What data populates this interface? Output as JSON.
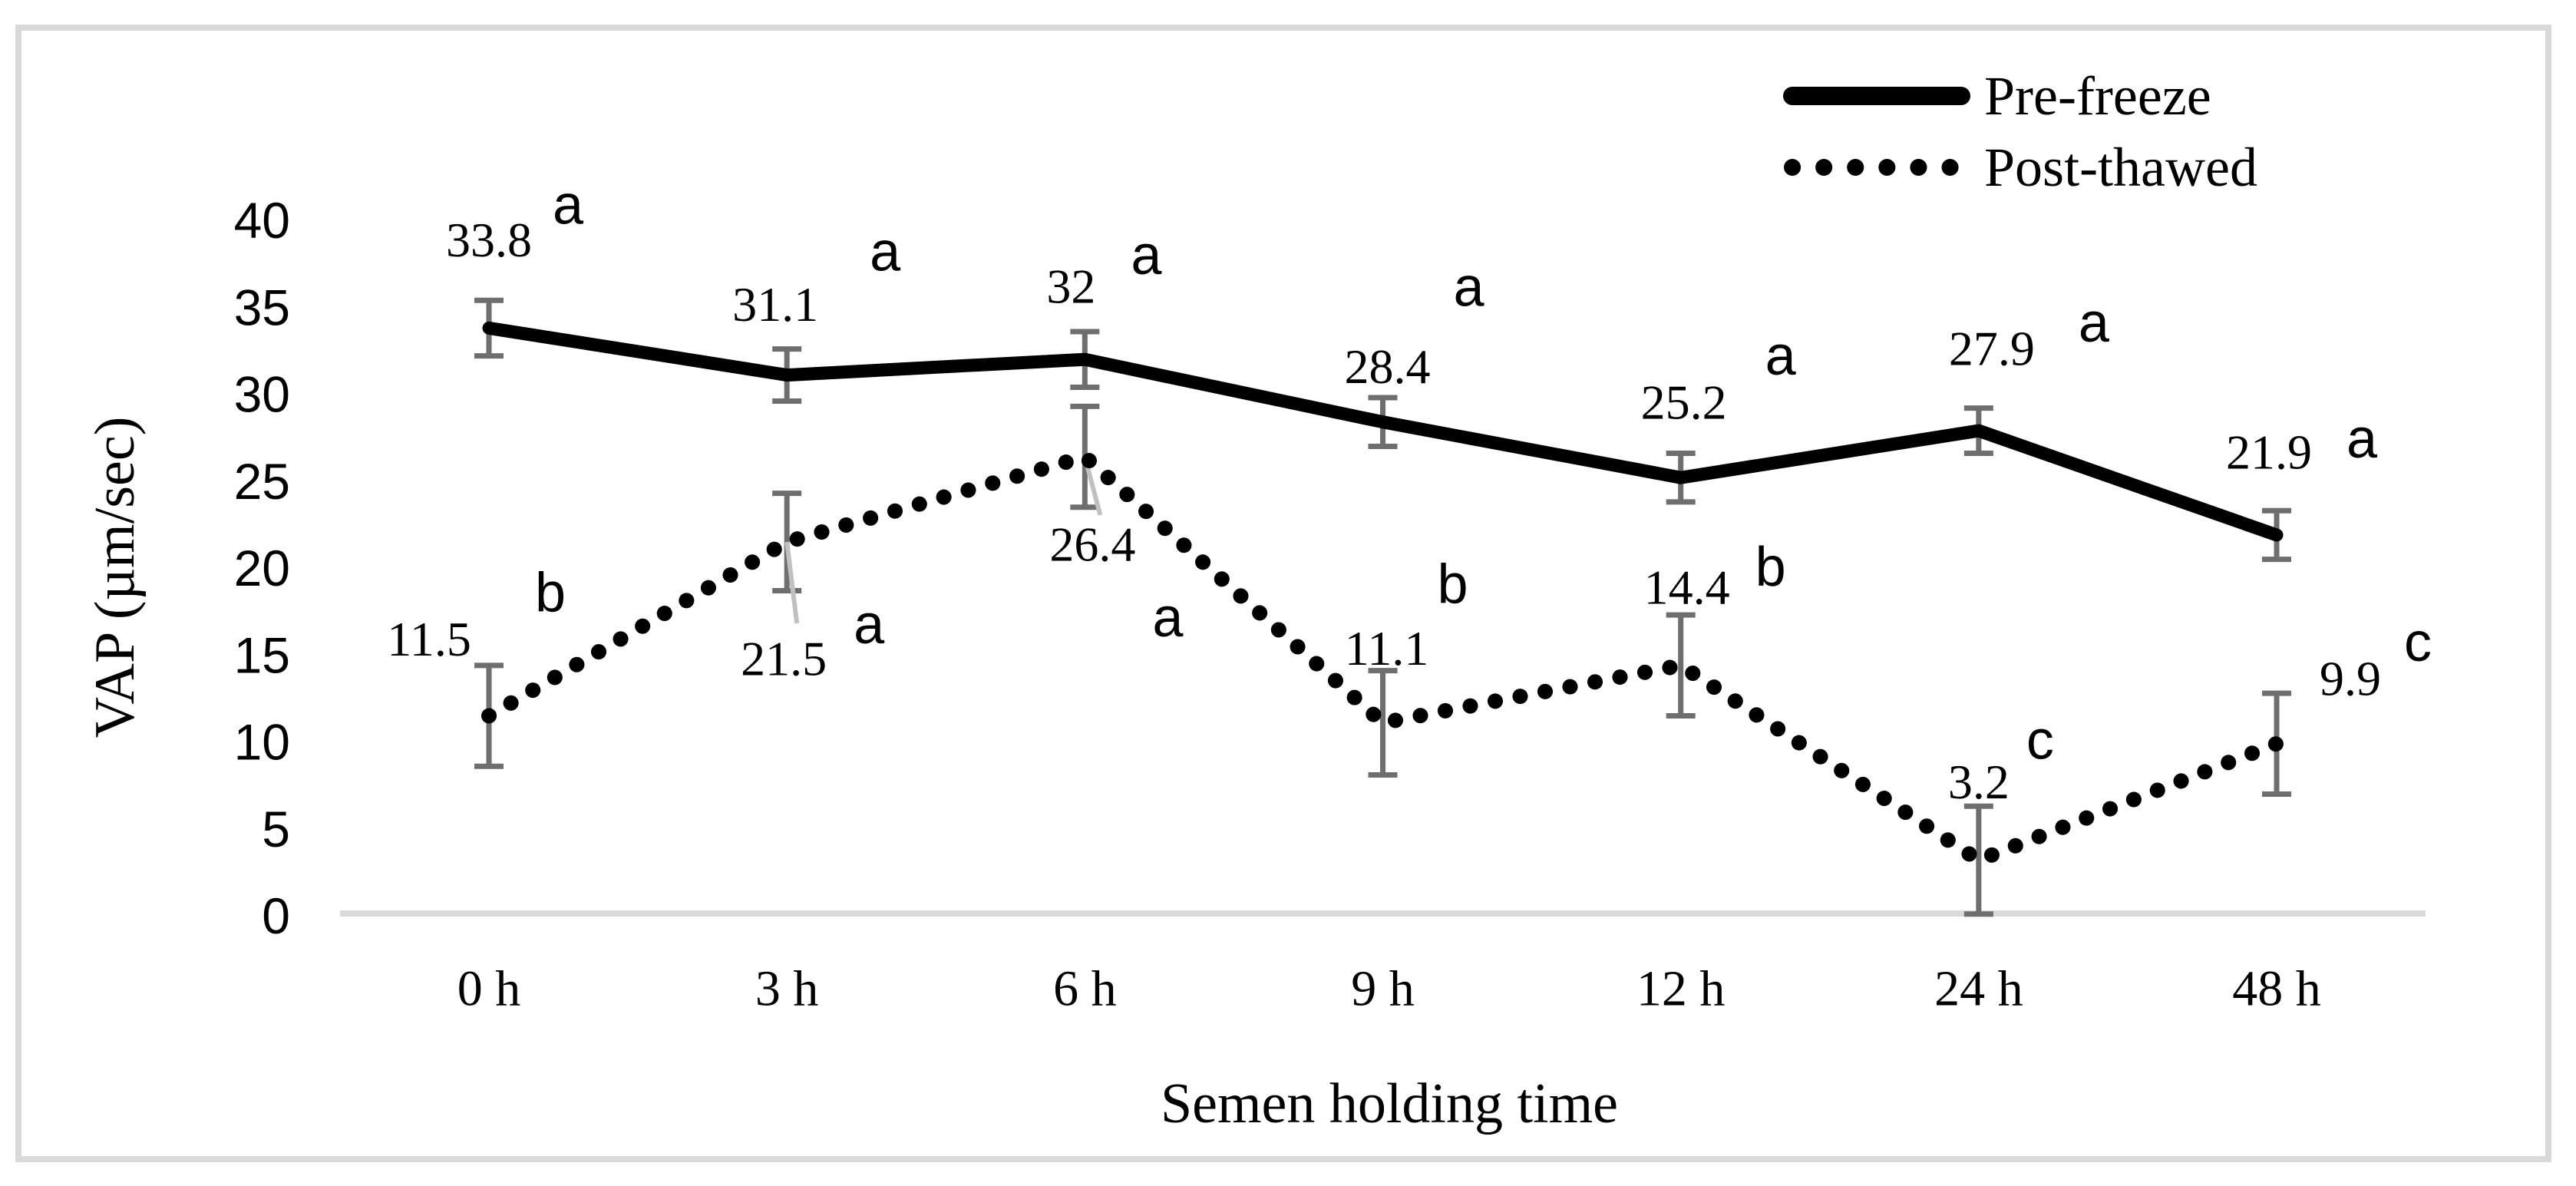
{
  "chart_data": {
    "type": "line",
    "title": "",
    "xlabel": "Semen holding time",
    "ylabel": "VAP (µm/sec)",
    "ylim": [
      0,
      40
    ],
    "ytick_step": 5,
    "yticks": [
      "0",
      "5",
      "10",
      "15",
      "20",
      "25",
      "30",
      "35",
      "40"
    ],
    "categories": [
      "0 h",
      "3 h",
      "6 h",
      "9 h",
      "12 h",
      "24 h",
      "48 h"
    ],
    "grid": "off",
    "legend_position": "top-right",
    "legend": [
      {
        "label": "Pre-freeze",
        "style": "solid"
      },
      {
        "label": "Post-thawed",
        "style": "dotted"
      }
    ],
    "colors": {
      "line": "#000000",
      "error_bar": "#6e6e6e",
      "leader_line": "#c0c0c0",
      "axis_line": "#d9d9d9",
      "frame": "#d9d9d9",
      "text": "#000000"
    },
    "series": [
      {
        "name": "Pre-freeze",
        "style": "solid",
        "points": [
          {
            "category": "0 h",
            "value": 33.8,
            "error": 1.6,
            "label": "33.8",
            "sig": "a",
            "ldx": 0,
            "ldy": -115,
            "sdx": 103,
            "sdy": -160
          },
          {
            "category": "3 h",
            "value": 31.1,
            "error": 1.5,
            "label": "31.1",
            "sig": "a",
            "ldx": -15,
            "ldy": -92,
            "sdx": 128,
            "sdy": -160
          },
          {
            "category": "6 h",
            "value": 32,
            "error": 1.6,
            "label": "32",
            "sig": "a",
            "ldx": -18,
            "ldy": -95,
            "sdx": 80,
            "sdy": -135
          },
          {
            "category": "9 h",
            "value": 28.4,
            "error": 1.4,
            "label": "28.4",
            "sig": "a",
            "ldx": 6,
            "ldy": -72,
            "sdx": 112,
            "sdy": -175
          },
          {
            "category": "12 h",
            "value": 25.2,
            "error": 1.4,
            "label": "25.2",
            "sig": "a",
            "ldx": 4,
            "ldy": -98,
            "sdx": 130,
            "sdy": -158
          },
          {
            "category": "24 h",
            "value": 27.9,
            "error": 1.3,
            "label": "27.9",
            "sig": "a",
            "ldx": 17,
            "ldy": -107,
            "sdx": 150,
            "sdy": -140
          },
          {
            "category": "48 h",
            "value": 21.9,
            "error": 1.4,
            "label": "21.9",
            "sig": "a",
            "ldx": -10,
            "ldy": -108,
            "sdx": 111,
            "sdy": -125
          }
        ]
      },
      {
        "name": "Post-thawed",
        "style": "dotted",
        "points": [
          {
            "category": "0 h",
            "value": 11.5,
            "error": 2.9,
            "label": "11.5",
            "sig": "b",
            "ldx": -78,
            "ldy": -100,
            "sdx": 80,
            "sdy": -160
          },
          {
            "category": "3 h",
            "value": 21.5,
            "error": 2.8,
            "label": "21.5",
            "sig": "a",
            "ldx": -4,
            "ldy": 152,
            "sdx": 107,
            "sdy": 108,
            "leader": [
              13,
              106
            ]
          },
          {
            "category": "6 h",
            "value": 26.4,
            "error": 2.9,
            "label": "26.4",
            "sig": "a",
            "ldx": 10,
            "ldy": 114,
            "sdx": 108,
            "sdy": 210,
            "leader": [
              20,
              76
            ]
          },
          {
            "category": "9 h",
            "value": 11.1,
            "error": 3.0,
            "label": "11.1",
            "sig": "b",
            "ldx": 5,
            "ldy": -97,
            "sdx": 91,
            "sdy": -180
          },
          {
            "category": "12 h",
            "value": 14.4,
            "error": 2.9,
            "label": "14.4",
            "sig": "b",
            "ldx": 8,
            "ldy": -102,
            "sdx": 117,
            "sdy": -128
          },
          {
            "category": "24 h",
            "value": 3.2,
            "error": 3.1,
            "label": "3.2",
            "sig": "c",
            "ldx": 0,
            "ldy": -102,
            "sdx": 80,
            "sdy": -156
          },
          {
            "category": "48 h",
            "value": 9.9,
            "error": 2.9,
            "label": "9.9",
            "sig": "c",
            "ldx": 96,
            "ldy": -85,
            "sdx": 184,
            "sdy": -132
          }
        ]
      }
    ]
  }
}
